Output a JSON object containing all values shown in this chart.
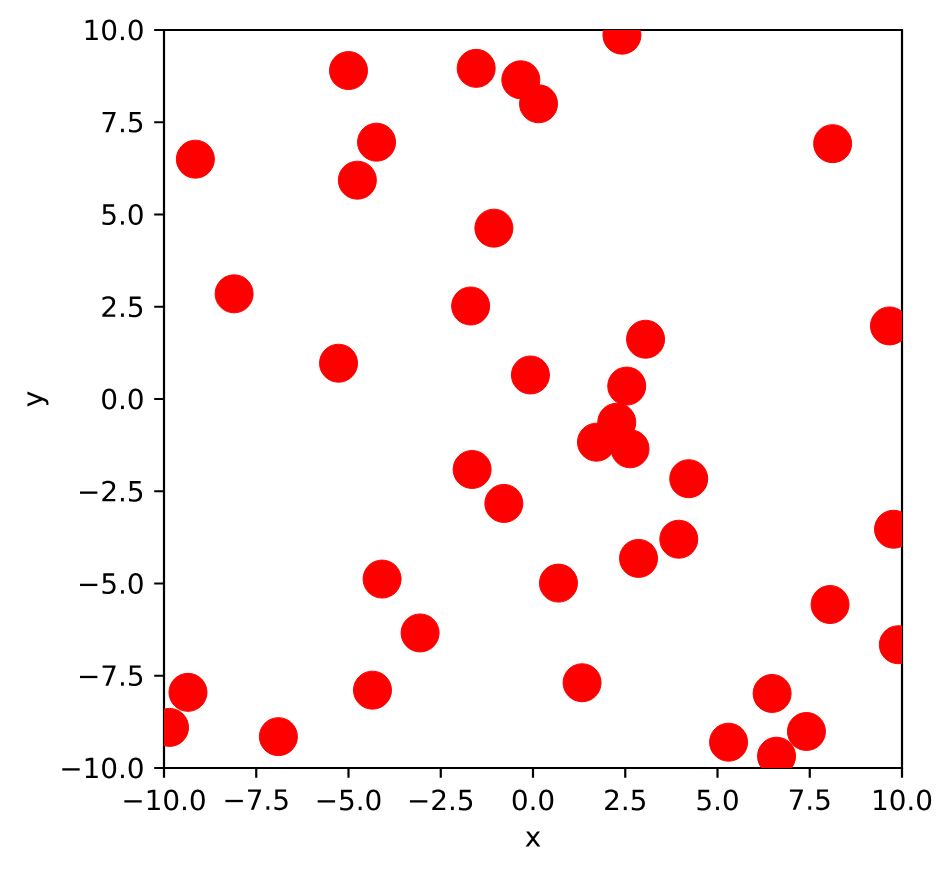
{
  "chart_data": {
    "type": "scatter",
    "xlabel": "x",
    "ylabel": "y",
    "color": "#ff0000",
    "marker": "circle",
    "x": [
      -9.85,
      -9.35,
      -9.15,
      -8.1,
      -6.9,
      -5.27,
      -5.0,
      -4.76,
      -4.24,
      -4.35,
      -4.09,
      -3.06,
      -1.69,
      -1.54,
      -1.06,
      -1.65,
      -0.79,
      -0.33,
      0.15,
      -0.07,
      0.69,
      1.33,
      1.72,
      2.27,
      2.41,
      2.54,
      2.63,
      2.86,
      3.05,
      3.95,
      4.22,
      5.3,
      6.48,
      6.6,
      7.41,
      8.12,
      8.05,
      9.66,
      9.77,
      9.9
    ],
    "values": [
      -8.9,
      -7.95,
      6.5,
      2.85,
      -9.15,
      0.97,
      8.9,
      5.93,
      6.96,
      -7.89,
      -4.88,
      -6.34,
      2.52,
      8.96,
      4.63,
      -1.91,
      -2.83,
      8.65,
      8.0,
      0.65,
      -4.99,
      -7.69,
      -1.17,
      -0.63,
      9.86,
      0.35,
      -1.35,
      -4.32,
      1.62,
      -3.8,
      -2.16,
      -9.3,
      -7.98,
      -9.68,
      -9.01,
      6.92,
      -5.57,
      1.98,
      -3.53,
      -6.66
    ],
    "xlim": [
      -10,
      10
    ],
    "ylim": [
      -10,
      10
    ],
    "xticks": [
      {
        "value": -10,
        "label": "−10.0"
      },
      {
        "value": -7.5,
        "label": "−7.5"
      },
      {
        "value": -5,
        "label": "−5.0"
      },
      {
        "value": -2.5,
        "label": "−2.5"
      },
      {
        "value": 0,
        "label": "0.0"
      },
      {
        "value": 2.5,
        "label": "2.5"
      },
      {
        "value": 5,
        "label": "5.0"
      },
      {
        "value": 7.5,
        "label": "7.5"
      },
      {
        "value": 10,
        "label": "10.0"
      }
    ],
    "yticks": [
      {
        "value": -10,
        "label": "−10.0"
      },
      {
        "value": -7.5,
        "label": "−7.5"
      },
      {
        "value": -5,
        "label": "−5.0"
      },
      {
        "value": -2.5,
        "label": "−2.5"
      },
      {
        "value": 0,
        "label": "0.0"
      },
      {
        "value": 2.5,
        "label": "2.5"
      },
      {
        "value": 5,
        "label": "5.0"
      },
      {
        "value": 7.5,
        "label": "7.5"
      },
      {
        "value": 10,
        "label": "10.0"
      }
    ]
  }
}
